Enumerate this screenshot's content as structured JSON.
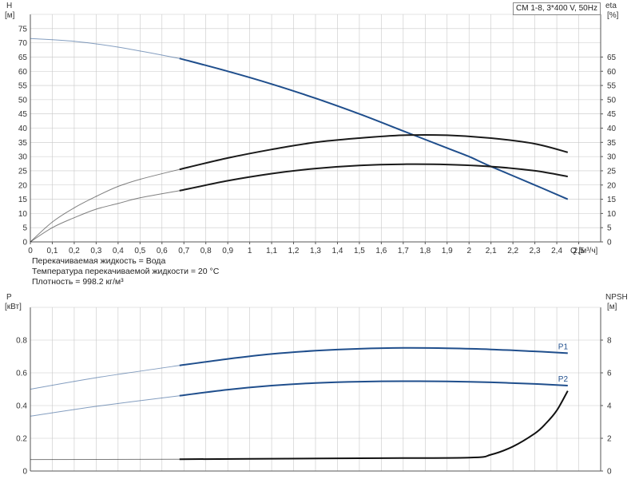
{
  "title": "CM 1-8, 3*400 V, 50Hz",
  "info": {
    "liquid": "Перекачиваемая жидкость = Вода",
    "temperature": "Температура перекачиваемой жидкости = 20 °C",
    "density": "Плотность = 998.2 кг/м³"
  },
  "chart_data": [
    {
      "type": "line",
      "title": "CM 1-8, 3*400 V, 50Hz",
      "xlabel": "Q [м³/ч]",
      "ylabel": "H [м]",
      "ylabel_right": "eta [%]",
      "xlim": [
        0,
        2.6
      ],
      "ylim": [
        0,
        80
      ],
      "ylim_right": [
        0,
        80
      ],
      "x_ticks": [
        0,
        0.1,
        0.2,
        0.3,
        0.4,
        0.5,
        0.6,
        0.7,
        0.8,
        0.9,
        1,
        1.1,
        1.2,
        1.3,
        1.4,
        1.5,
        1.6,
        1.7,
        1.8,
        1.9,
        2,
        2.1,
        2.2,
        2.3,
        2.4,
        2.5
      ],
      "x_tick_labels": [
        "0",
        "0,1",
        "0,2",
        "0,3",
        "0,4",
        "0,5",
        "0,6",
        "0,7",
        "0,8",
        "0,9",
        "1",
        "1,1",
        "1,2",
        "1,3",
        "1,4",
        "1,5",
        "1,6",
        "1,7",
        "1,8",
        "1,9",
        "2",
        "2,1",
        "2,2",
        "2,3",
        "2,4",
        "2,5"
      ],
      "y_ticks": [
        0,
        5,
        10,
        15,
        20,
        25,
        30,
        35,
        40,
        45,
        50,
        55,
        60,
        65,
        70,
        75
      ],
      "y_ticks_right": [
        0,
        5,
        10,
        15,
        20,
        25,
        30,
        35,
        40,
        45,
        50,
        55,
        60,
        65
      ],
      "grid": true,
      "series": [
        {
          "key": "H",
          "name": "",
          "axis": "left",
          "color": "#1f4e8c",
          "x_min_operating": 0.68,
          "x": [
            0,
            0.2,
            0.4,
            0.68,
            0.9,
            1.1,
            1.3,
            1.5,
            1.7,
            1.9,
            2.0,
            2.1,
            2.3,
            2.45
          ],
          "y": [
            71.5,
            70.5,
            68.5,
            64.5,
            60,
            55.5,
            50.5,
            45,
            39,
            33,
            30,
            26.5,
            20,
            15
          ]
        },
        {
          "key": "eta",
          "name": "",
          "axis": "right",
          "color": "#1a1a1a",
          "x_min_operating": 0.68,
          "x": [
            0,
            0.1,
            0.2,
            0.3,
            0.4,
            0.5,
            0.68,
            0.9,
            1.1,
            1.3,
            1.5,
            1.7,
            1.9,
            2.1,
            2.3,
            2.45
          ],
          "y": [
            0,
            7,
            12,
            16,
            19.5,
            22,
            25.5,
            29.5,
            32.5,
            35,
            36.5,
            37.5,
            37.5,
            36.5,
            34.5,
            31.5
          ]
        },
        {
          "key": "eta2",
          "name": "",
          "axis": "right",
          "color": "#1a1a1a",
          "x_min_operating": 0.68,
          "x": [
            0,
            0.1,
            0.2,
            0.3,
            0.4,
            0.5,
            0.68,
            0.9,
            1.1,
            1.3,
            1.5,
            1.7,
            1.9,
            2.1,
            2.3,
            2.45
          ],
          "y": [
            0,
            5,
            8.5,
            11.5,
            13.5,
            15.5,
            18,
            21.5,
            24,
            25.8,
            26.9,
            27.3,
            27.2,
            26.5,
            25,
            23
          ]
        }
      ]
    },
    {
      "type": "line",
      "xlabel": "",
      "ylabel": "P [кВт]",
      "ylabel_right": "NPSH [м]",
      "xlim": [
        0,
        2.6
      ],
      "ylim": [
        0,
        1.0
      ],
      "ylim_right": [
        0,
        10
      ],
      "y_ticks": [
        0,
        0.2,
        0.4,
        0.6,
        0.8
      ],
      "y_tick_labels": [
        "0",
        "0.2",
        "0.4",
        "0.6",
        "0.8"
      ],
      "y_ticks_right": [
        0,
        2,
        4,
        6,
        8
      ],
      "grid": true,
      "series": [
        {
          "key": "P1",
          "name": "P1",
          "axis": "left",
          "color": "#1f4e8c",
          "x_min_operating": 0.68,
          "x": [
            0,
            0.3,
            0.68,
            0.9,
            1.1,
            1.3,
            1.5,
            1.7,
            1.9,
            2.1,
            2.3,
            2.45
          ],
          "y": [
            0.5,
            0.57,
            0.645,
            0.685,
            0.715,
            0.735,
            0.747,
            0.752,
            0.75,
            0.743,
            0.731,
            0.72
          ]
        },
        {
          "key": "P2",
          "name": "P2",
          "axis": "left",
          "color": "#1f4e8c",
          "x_min_operating": 0.68,
          "x": [
            0,
            0.3,
            0.68,
            0.9,
            1.1,
            1.3,
            1.5,
            1.7,
            1.9,
            2.1,
            2.3,
            2.45
          ],
          "y": [
            0.335,
            0.395,
            0.46,
            0.497,
            0.522,
            0.538,
            0.546,
            0.549,
            0.548,
            0.542,
            0.532,
            0.522
          ]
        },
        {
          "key": "NPSH",
          "name": "",
          "axis": "right",
          "color": "#111111",
          "x_min_operating": 0.68,
          "x": [
            0,
            0.68,
            1.0,
            1.5,
            2.0,
            2.1,
            2.2,
            2.3,
            2.35,
            2.4,
            2.45
          ],
          "y": [
            0.7,
            0.72,
            0.74,
            0.78,
            0.82,
            1.0,
            1.5,
            2.3,
            2.9,
            3.7,
            4.9
          ]
        }
      ]
    }
  ]
}
